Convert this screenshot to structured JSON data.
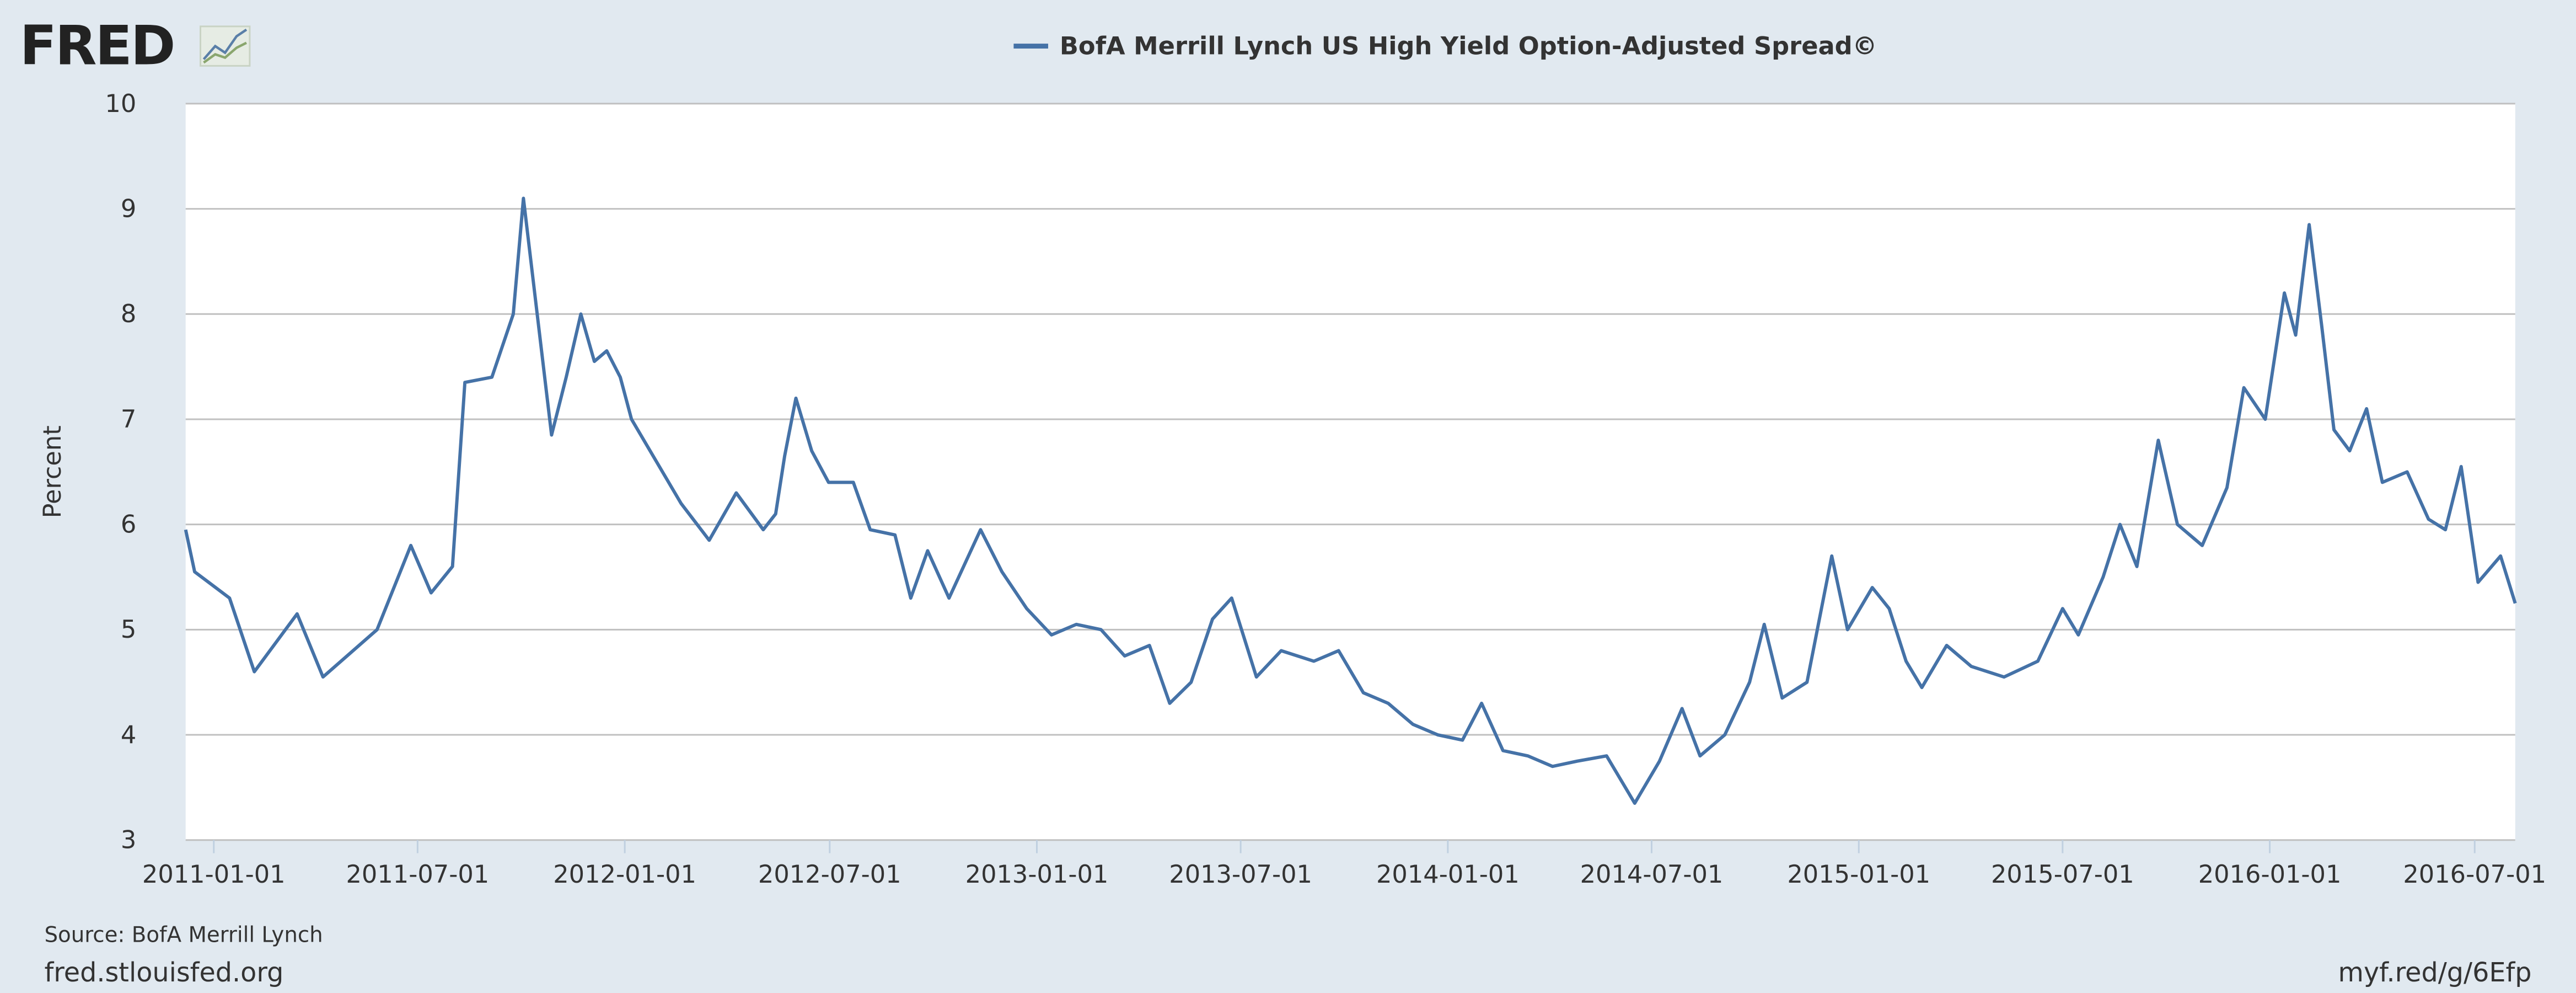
{
  "logo": "FRED",
  "chart_data": {
    "type": "line",
    "ylabel": "Percent",
    "x": [
      "2010-12-07",
      "2010-12-15",
      "2011-01-15",
      "2011-02-06",
      "2011-03-16",
      "2011-04-08",
      "2011-05-26",
      "2011-06-25",
      "2011-07-13",
      "2011-08-01",
      "2011-08-12",
      "2011-09-05",
      "2011-09-24",
      "2011-10-03",
      "2011-10-23",
      "2011-10-28",
      "2011-11-10",
      "2011-11-23",
      "2011-12-05",
      "2011-12-16",
      "2011-12-28",
      "2012-01-07",
      "2012-01-29",
      "2012-02-20",
      "2012-03-16",
      "2012-04-09",
      "2012-05-03",
      "2012-05-14",
      "2012-05-22",
      "2012-06-01",
      "2012-06-15",
      "2012-06-30",
      "2012-07-22",
      "2012-08-06",
      "2012-08-28",
      "2012-09-11",
      "2012-09-26",
      "2012-10-15",
      "2012-11-12",
      "2012-12-01",
      "2012-12-23",
      "2013-01-14",
      "2013-02-05",
      "2013-02-27",
      "2013-03-20",
      "2013-04-11",
      "2013-04-29",
      "2013-05-18",
      "2013-06-06",
      "2013-06-23",
      "2013-07-15",
      "2013-08-06",
      "2013-09-04",
      "2013-09-26",
      "2013-10-18",
      "2013-11-09",
      "2013-12-01",
      "2013-12-23",
      "2014-01-14",
      "2014-01-31",
      "2014-02-19",
      "2014-03-13",
      "2014-04-04",
      "2014-04-26",
      "2014-05-22",
      "2014-06-16",
      "2014-07-08",
      "2014-07-28",
      "2014-08-13",
      "2014-09-04",
      "2014-09-26",
      "2014-10-09",
      "2014-10-25",
      "2014-11-16",
      "2014-12-08",
      "2014-12-22",
      "2015-01-13",
      "2015-01-28",
      "2015-02-12",
      "2015-02-26",
      "2015-03-20",
      "2015-04-11",
      "2015-05-10",
      "2015-06-09",
      "2015-07-01",
      "2015-07-15",
      "2015-08-06",
      "2015-08-21",
      "2015-09-05",
      "2015-09-24",
      "2015-10-11",
      "2015-11-02",
      "2015-11-24",
      "2015-12-09",
      "2015-12-28",
      "2016-01-14",
      "2016-01-24",
      "2016-02-05",
      "2016-02-16",
      "2016-02-27",
      "2016-03-12",
      "2016-03-27",
      "2016-04-10",
      "2016-05-02",
      "2016-05-21",
      "2016-06-05",
      "2016-06-19",
      "2016-07-04",
      "2016-07-24",
      "2016-08-06"
    ],
    "series": [
      {
        "name": "BofA Merrill Lynch US High Yield Option-Adjusted Spread©",
        "color": "#4572a7",
        "values": [
          5.95,
          5.55,
          5.3,
          4.6,
          5.15,
          4.55,
          5.0,
          5.8,
          5.35,
          5.6,
          7.35,
          7.4,
          8.0,
          9.1,
          7.3,
          6.85,
          7.4,
          8.0,
          7.55,
          7.65,
          7.4,
          7.0,
          6.6,
          6.2,
          5.85,
          6.3,
          5.95,
          6.1,
          6.65,
          7.2,
          6.7,
          6.4,
          6.4,
          5.95,
          5.9,
          5.3,
          5.75,
          5.3,
          5.95,
          5.55,
          5.2,
          4.95,
          5.05,
          5.0,
          4.75,
          4.85,
          4.3,
          4.5,
          5.1,
          5.3,
          4.55,
          4.8,
          4.7,
          4.8,
          4.4,
          4.3,
          4.1,
          4.0,
          3.95,
          4.3,
          3.85,
          3.8,
          3.7,
          3.75,
          3.8,
          3.35,
          3.75,
          4.25,
          3.8,
          4.0,
          4.5,
          5.05,
          4.35,
          4.5,
          5.7,
          5.0,
          5.4,
          5.2,
          4.7,
          4.45,
          4.85,
          4.65,
          4.55,
          4.7,
          5.2,
          4.95,
          5.5,
          6.0,
          5.6,
          6.8,
          6.0,
          5.8,
          6.35,
          7.3,
          7.0,
          8.2,
          7.8,
          8.85,
          7.9,
          6.9,
          6.7,
          7.1,
          6.4,
          6.5,
          6.05,
          5.95,
          6.55,
          5.45,
          5.7,
          5.25
        ]
      }
    ],
    "xlim": [
      "2010-12-07",
      "2016-08-06"
    ],
    "xticks": [
      "2011-01-01",
      "2011-07-01",
      "2012-01-01",
      "2012-07-01",
      "2013-01-01",
      "2013-07-01",
      "2014-01-01",
      "2014-07-01",
      "2015-01-01",
      "2015-07-01",
      "2016-01-01",
      "2016-07-01"
    ],
    "ylim": [
      3,
      10
    ],
    "yticks": [
      3,
      4,
      5,
      6,
      7,
      8,
      9,
      10
    ],
    "grid": true
  },
  "source": "Source: BofA Merrill Lynch",
  "footer_left": "fred.stlouisfed.org",
  "footer_right": "myf.red/g/6Efp"
}
